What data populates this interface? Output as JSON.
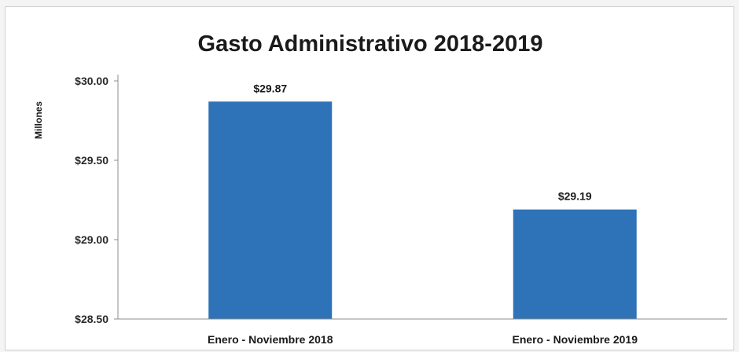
{
  "chart_data": {
    "type": "bar",
    "title": "Gasto Administrativo 2018-2019",
    "ylabel": "Millones",
    "xlabel": "",
    "categories": [
      "Enero - Noviembre 2018",
      "Enero - Noviembre 2019"
    ],
    "values": [
      29.87,
      29.19
    ],
    "data_labels": [
      "$29.87",
      "$29.19"
    ],
    "ylim": [
      28.5,
      30.0
    ],
    "yticks": [
      28.5,
      29.0,
      29.5,
      30.0
    ],
    "ytick_labels": [
      "$28.50",
      "$29.00",
      "$29.50",
      "$30.00"
    ],
    "bar_color": "#2e73b8",
    "grid": false,
    "legend": "none"
  }
}
